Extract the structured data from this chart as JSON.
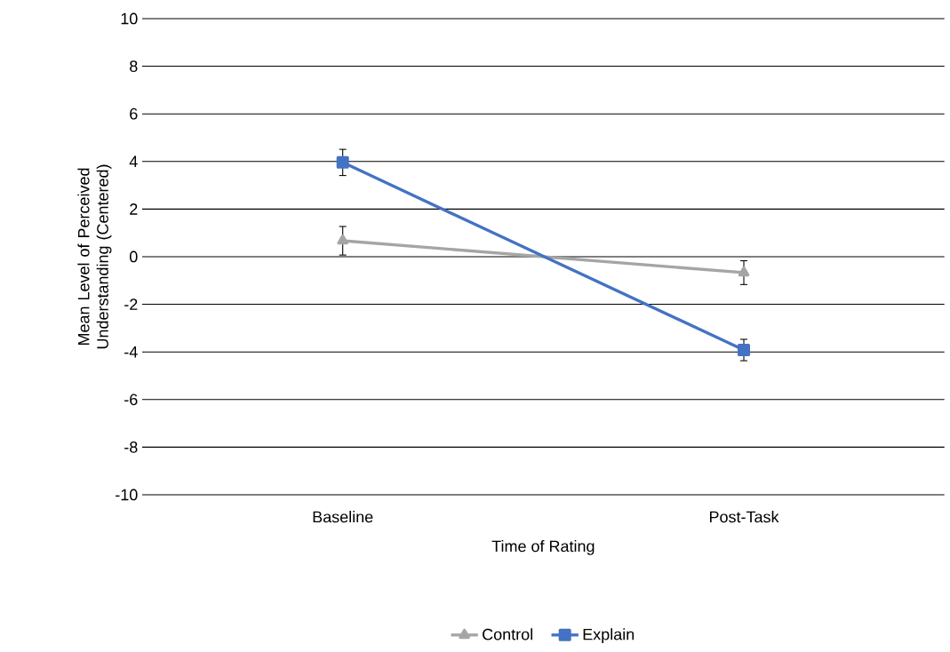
{
  "chart_data": {
    "type": "line",
    "xlabel": "Time of Rating",
    "ylabel": "Mean Level of Perceived Understanding (Centered)",
    "categories": [
      "Baseline",
      "Post-Task"
    ],
    "series": [
      {
        "name": "Control",
        "color": "#a5a5a5",
        "values": [
          0.67,
          -0.67
        ],
        "errors": [
          0.6,
          0.5
        ],
        "marker": "triangle"
      },
      {
        "name": "Explain",
        "color": "#4472c4",
        "values": [
          3.96,
          -3.92
        ],
        "errors": [
          0.55,
          0.45
        ],
        "marker": "square"
      }
    ],
    "ylim": [
      -10,
      10
    ],
    "yticks": [
      -10,
      -8,
      -6,
      -4,
      -2,
      0,
      2,
      4,
      6,
      8,
      10
    ],
    "grid": "y",
    "legend": "bottom",
    "line_style": "solid"
  }
}
